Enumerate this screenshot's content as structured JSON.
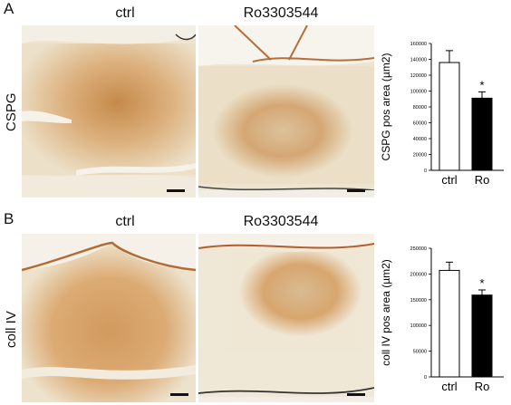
{
  "panels": [
    {
      "letter": "A",
      "row_label": "CSPG",
      "columns": [
        "ctrl",
        "Ro3303544"
      ],
      "chart": {
        "type": "bar",
        "categories": [
          "ctrl",
          "Ro"
        ],
        "values": [
          136000,
          91000
        ],
        "errors": [
          15000,
          8000
        ],
        "ylabel": "CSPG pos area (µm2)",
        "ylim": [
          0,
          160000
        ],
        "yticks": [
          "0",
          "20000",
          "40000",
          "60000",
          "80000",
          "100000",
          "120000",
          "140000",
          "160000"
        ],
        "fills": [
          "#ffffff",
          "#000000"
        ],
        "significance": [
          "",
          "*"
        ]
      }
    },
    {
      "letter": "B",
      "row_label": "coll IV",
      "columns": [
        "ctrl",
        "Ro3303544"
      ],
      "chart": {
        "type": "bar",
        "categories": [
          "ctrl",
          "Ro"
        ],
        "values": [
          207000,
          159000
        ],
        "errors": [
          16000,
          10000
        ],
        "ylabel": "coll IV pos area (µm2)",
        "ylim": [
          0,
          250000
        ],
        "yticks": [
          "0",
          "50000",
          "100000",
          "150000",
          "200000",
          "250000"
        ],
        "fills": [
          "#ffffff",
          "#000000"
        ],
        "significance": [
          "",
          "*"
        ]
      }
    }
  ],
  "chart_data": [
    {
      "type": "bar",
      "categories": [
        "ctrl",
        "Ro"
      ],
      "values": [
        136000,
        91000
      ],
      "errors": [
        15000,
        8000
      ],
      "ylabel": "CSPG pos area (µm2)",
      "ylim": [
        0,
        160000
      ]
    },
    {
      "type": "bar",
      "categories": [
        "ctrl",
        "Ro"
      ],
      "values": [
        207000,
        159000
      ],
      "errors": [
        16000,
        10000
      ],
      "ylabel": "coll IV pos area (µm2)",
      "ylim": [
        0,
        250000
      ]
    }
  ]
}
